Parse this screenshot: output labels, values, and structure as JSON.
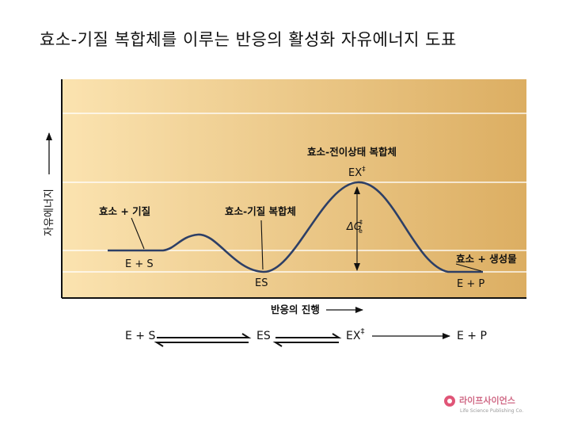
{
  "slide": {
    "title": "효소-기질 복합체를 이루는 반응의 활성화 자유에너지 도표"
  },
  "diagram": {
    "y_axis_label": "자유에너지",
    "x_axis_label": "반응의 진행",
    "labels": {
      "reactants_name": "효소 + 기질",
      "reactants_formula": "E + S",
      "es_complex_name": "효소-기질 복합체",
      "es_formula": "ES",
      "transition_name": "효소-전이상태 복합체",
      "transition_formula": "EX",
      "dagger": "‡",
      "delta_g": "ΔG",
      "delta_g_sub": "e",
      "products_name": "효소 + 생성물",
      "products_formula": "E + P"
    },
    "colors": {
      "background_light": "#fbe3b0",
      "background_dark": "#dcae62",
      "curve": "#2d3f66",
      "frame": "#111111"
    }
  },
  "scheme": {
    "reactants": "E + S",
    "complex": "ES",
    "transition": "EX",
    "dagger": "‡",
    "products": "E + P"
  },
  "publisher": {
    "name": "라이프사이언스",
    "name_en": "Life Science Publishing Co."
  }
}
